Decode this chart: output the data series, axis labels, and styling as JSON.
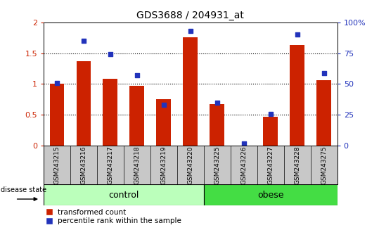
{
  "title": "GDS3688 / 204931_at",
  "samples": [
    "GSM243215",
    "GSM243216",
    "GSM243217",
    "GSM243218",
    "GSM243219",
    "GSM243220",
    "GSM243225",
    "GSM243226",
    "GSM243227",
    "GSM243228",
    "GSM243275"
  ],
  "transformed_count": [
    1.0,
    1.37,
    1.08,
    0.97,
    0.75,
    1.76,
    0.68,
    0.0,
    0.47,
    1.63,
    1.06
  ],
  "percentile_rank": [
    51,
    85,
    74,
    57,
    33,
    93,
    35,
    2,
    26,
    90,
    59
  ],
  "n_control": 6,
  "bar_color": "#CC2200",
  "dot_color": "#2233BB",
  "control_color": "#BBFFBB",
  "obese_color": "#44DD44",
  "bg_color": "#C8C8C8",
  "left_ylim": [
    0,
    2
  ],
  "right_ylim": [
    0,
    100
  ],
  "left_yticks": [
    0,
    0.5,
    1.0,
    1.5,
    2.0
  ],
  "right_yticks": [
    0,
    25,
    50,
    75,
    100
  ],
  "left_yticklabels": [
    "0",
    "0.5",
    "1",
    "1.5",
    "2"
  ],
  "right_yticklabels": [
    "0",
    "25",
    "50",
    "75",
    "100%"
  ],
  "dotted_lines": [
    0.5,
    1.0,
    1.5
  ],
  "legend_items": [
    "transformed count",
    "percentile rank within the sample"
  ],
  "disease_label": "disease state",
  "control_label": "control",
  "obese_label": "obese"
}
